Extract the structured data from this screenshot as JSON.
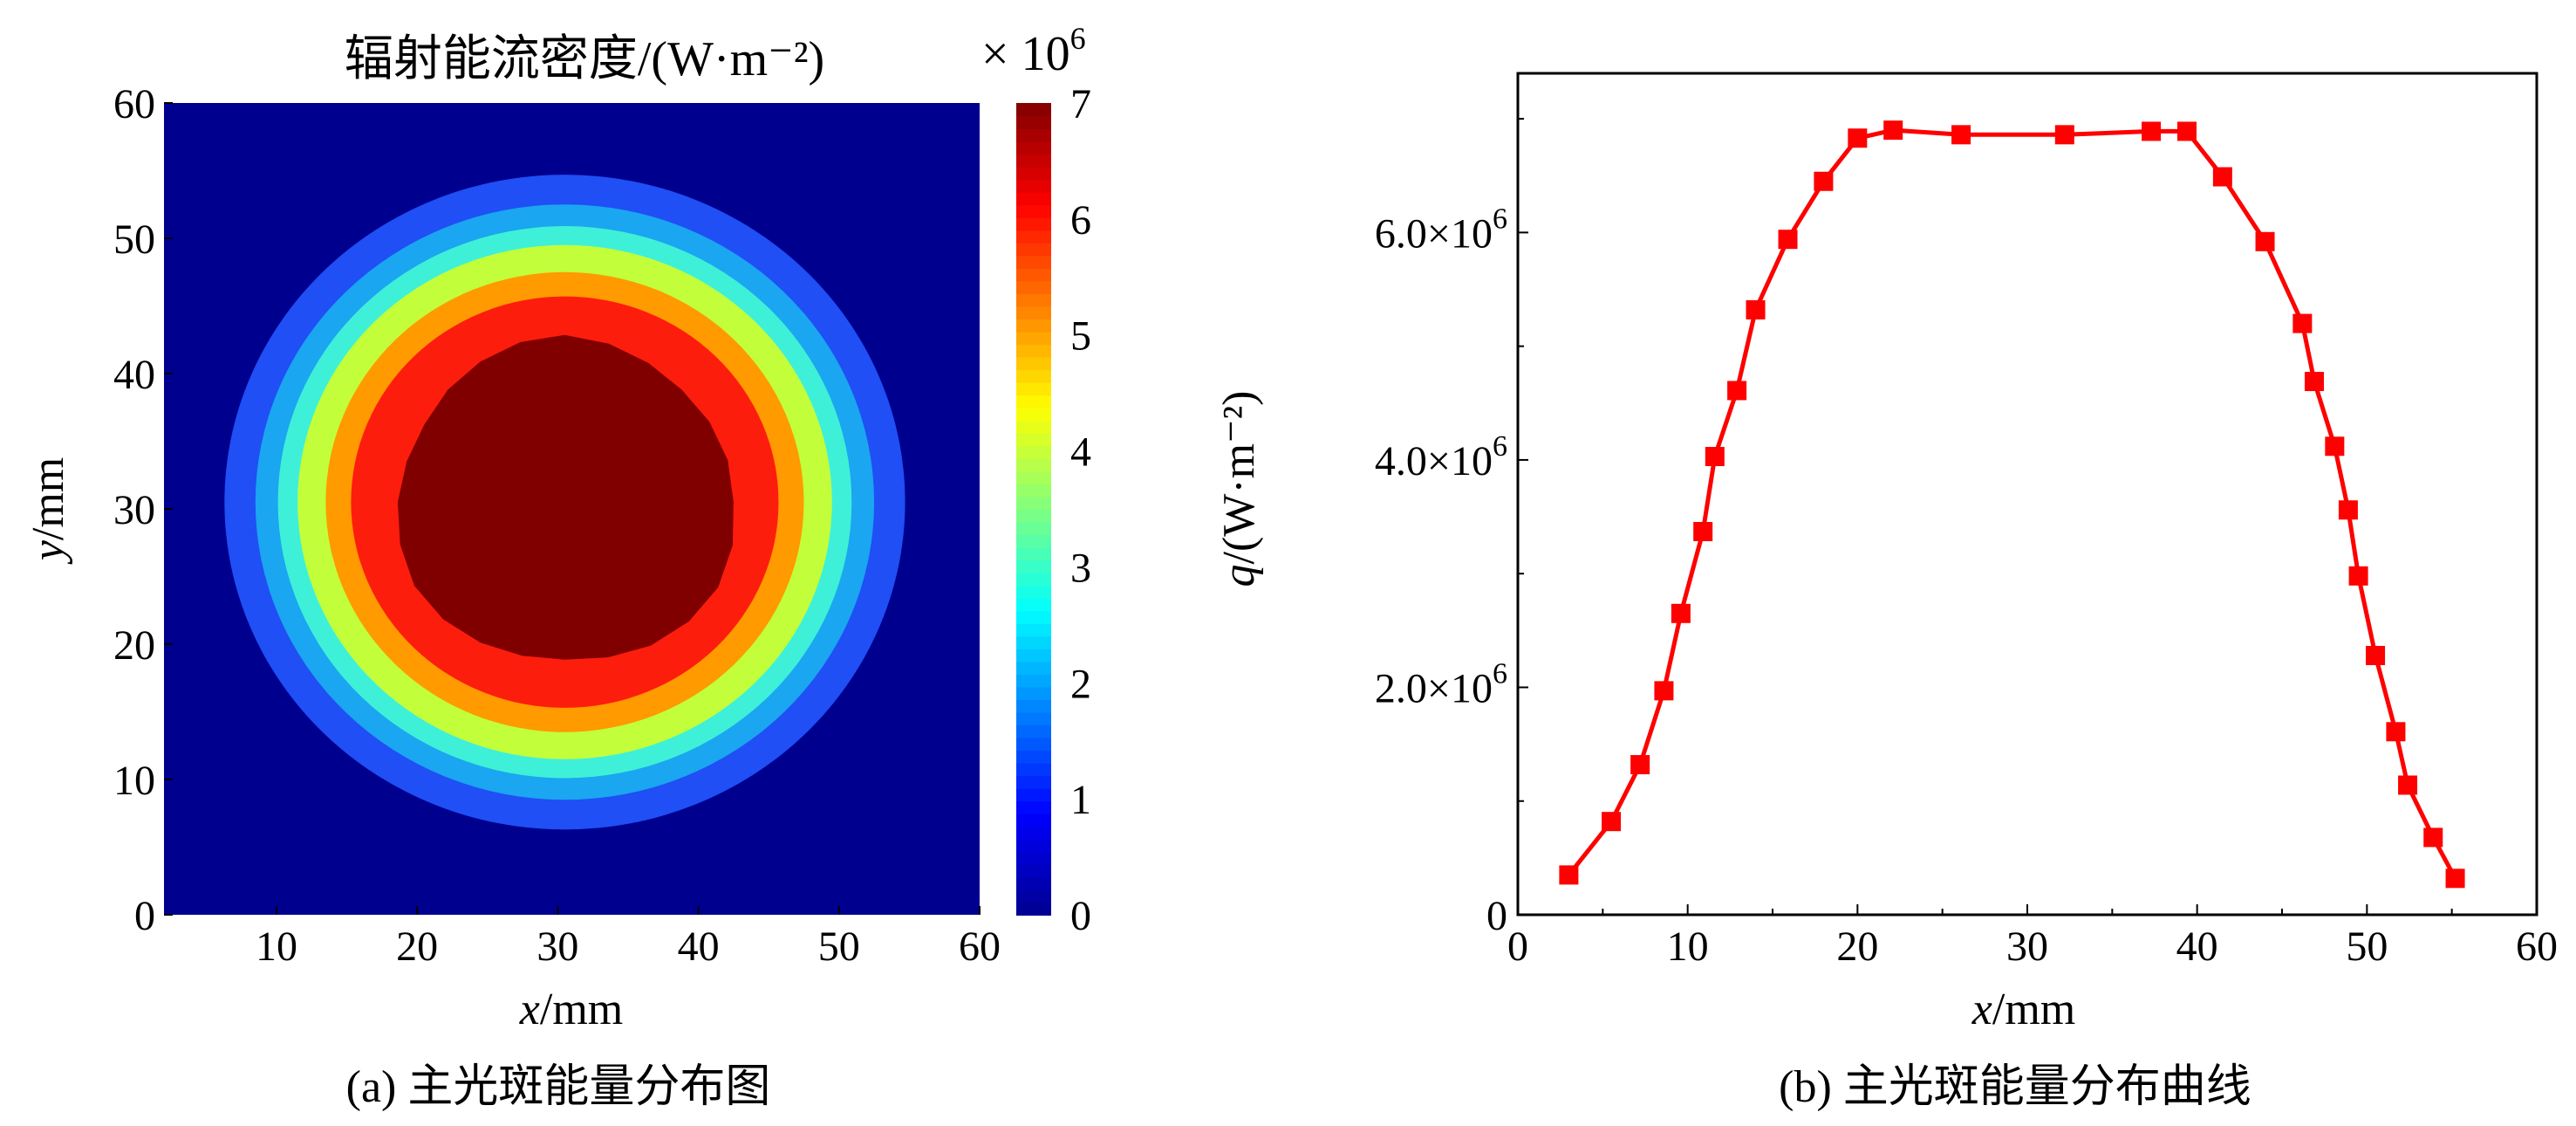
{
  "chart_data": [
    {
      "type": "heatmap",
      "title": "辐射能流密度/(W·m⁻²)",
      "xlabel_italic": "x",
      "xlabel_unit": "/mm",
      "ylabel_italic": "y",
      "ylabel_unit": "/mm",
      "xlim": [
        2,
        60
      ],
      "ylim": [
        0,
        60
      ],
      "x_ticks": [
        "10",
        "20",
        "30",
        "40",
        "50",
        "60"
      ],
      "y_ticks": [
        "0",
        "10",
        "20",
        "30",
        "40",
        "50",
        "60"
      ],
      "colorbar": {
        "multiplier_text": "× 10",
        "multiplier_exp": "6",
        "range": [
          0,
          7
        ],
        "ticks": [
          "0",
          "1",
          "2",
          "3",
          "4",
          "5",
          "6",
          "7"
        ]
      },
      "center": [
        30.5,
        30.5
      ],
      "levels": [
        {
          "value": 1,
          "radius_mm": 24.2,
          "color": "#1f4ff5"
        },
        {
          "value": 2,
          "radius_mm": 22.0,
          "color": "#1aa6f0"
        },
        {
          "value": 3,
          "radius_mm": 20.4,
          "color": "#3ff0d8"
        },
        {
          "value": 4,
          "radius_mm": 19.0,
          "color": "#c2ff3a"
        },
        {
          "value": 5,
          "radius_mm": 17.0,
          "color": "#ff9a00"
        },
        {
          "value": 6,
          "radius_mm": 15.2,
          "color": "#fd1d0c"
        },
        {
          "value": 7,
          "radius_mm": 12.0,
          "color": "#800000"
        }
      ],
      "background_color": "#00008f",
      "caption": "(a) 主光斑能量分布图"
    },
    {
      "type": "line",
      "xlabel_italic": "x",
      "xlabel_unit": "/mm",
      "ylabel_italic": "q",
      "ylabel_unit": "/(W·m⁻²)",
      "xlim": [
        0,
        60
      ],
      "ylim": [
        0,
        7400000
      ],
      "x_ticks": [
        "0",
        "10",
        "20",
        "30",
        "40",
        "50",
        "60"
      ],
      "y_ticks": [
        {
          "value": 0,
          "base": "0",
          "exp": ""
        },
        {
          "value": 2000000,
          "base": "2.0×10",
          "exp": "6"
        },
        {
          "value": 4000000,
          "base": "4.0×10",
          "exp": "6"
        },
        {
          "value": 6000000,
          "base": "6.0×10",
          "exp": "6"
        }
      ],
      "series": [
        {
          "color": "#ff0000",
          "marker": "square",
          "x": [
            3.0,
            5.5,
            7.2,
            8.6,
            9.6,
            10.9,
            11.6,
            12.9,
            14.0,
            15.9,
            18.0,
            20.0,
            22.1,
            26.1,
            32.2,
            37.3,
            39.4,
            41.5,
            44.0,
            46.2,
            46.9,
            48.1,
            48.9,
            49.5,
            50.5,
            51.7,
            52.4,
            53.9,
            55.2
          ],
          "y": [
            350000,
            820000,
            1320000,
            1970000,
            2650000,
            3370000,
            4030000,
            4610000,
            5320000,
            5940000,
            6450000,
            6830000,
            6900000,
            6860000,
            6860000,
            6890000,
            6890000,
            6490000,
            5920000,
            5200000,
            4690000,
            4120000,
            3560000,
            2980000,
            2280000,
            1610000,
            1140000,
            680000,
            320000
          ]
        }
      ],
      "caption": "(b) 主光斑能量分布曲线"
    }
  ]
}
